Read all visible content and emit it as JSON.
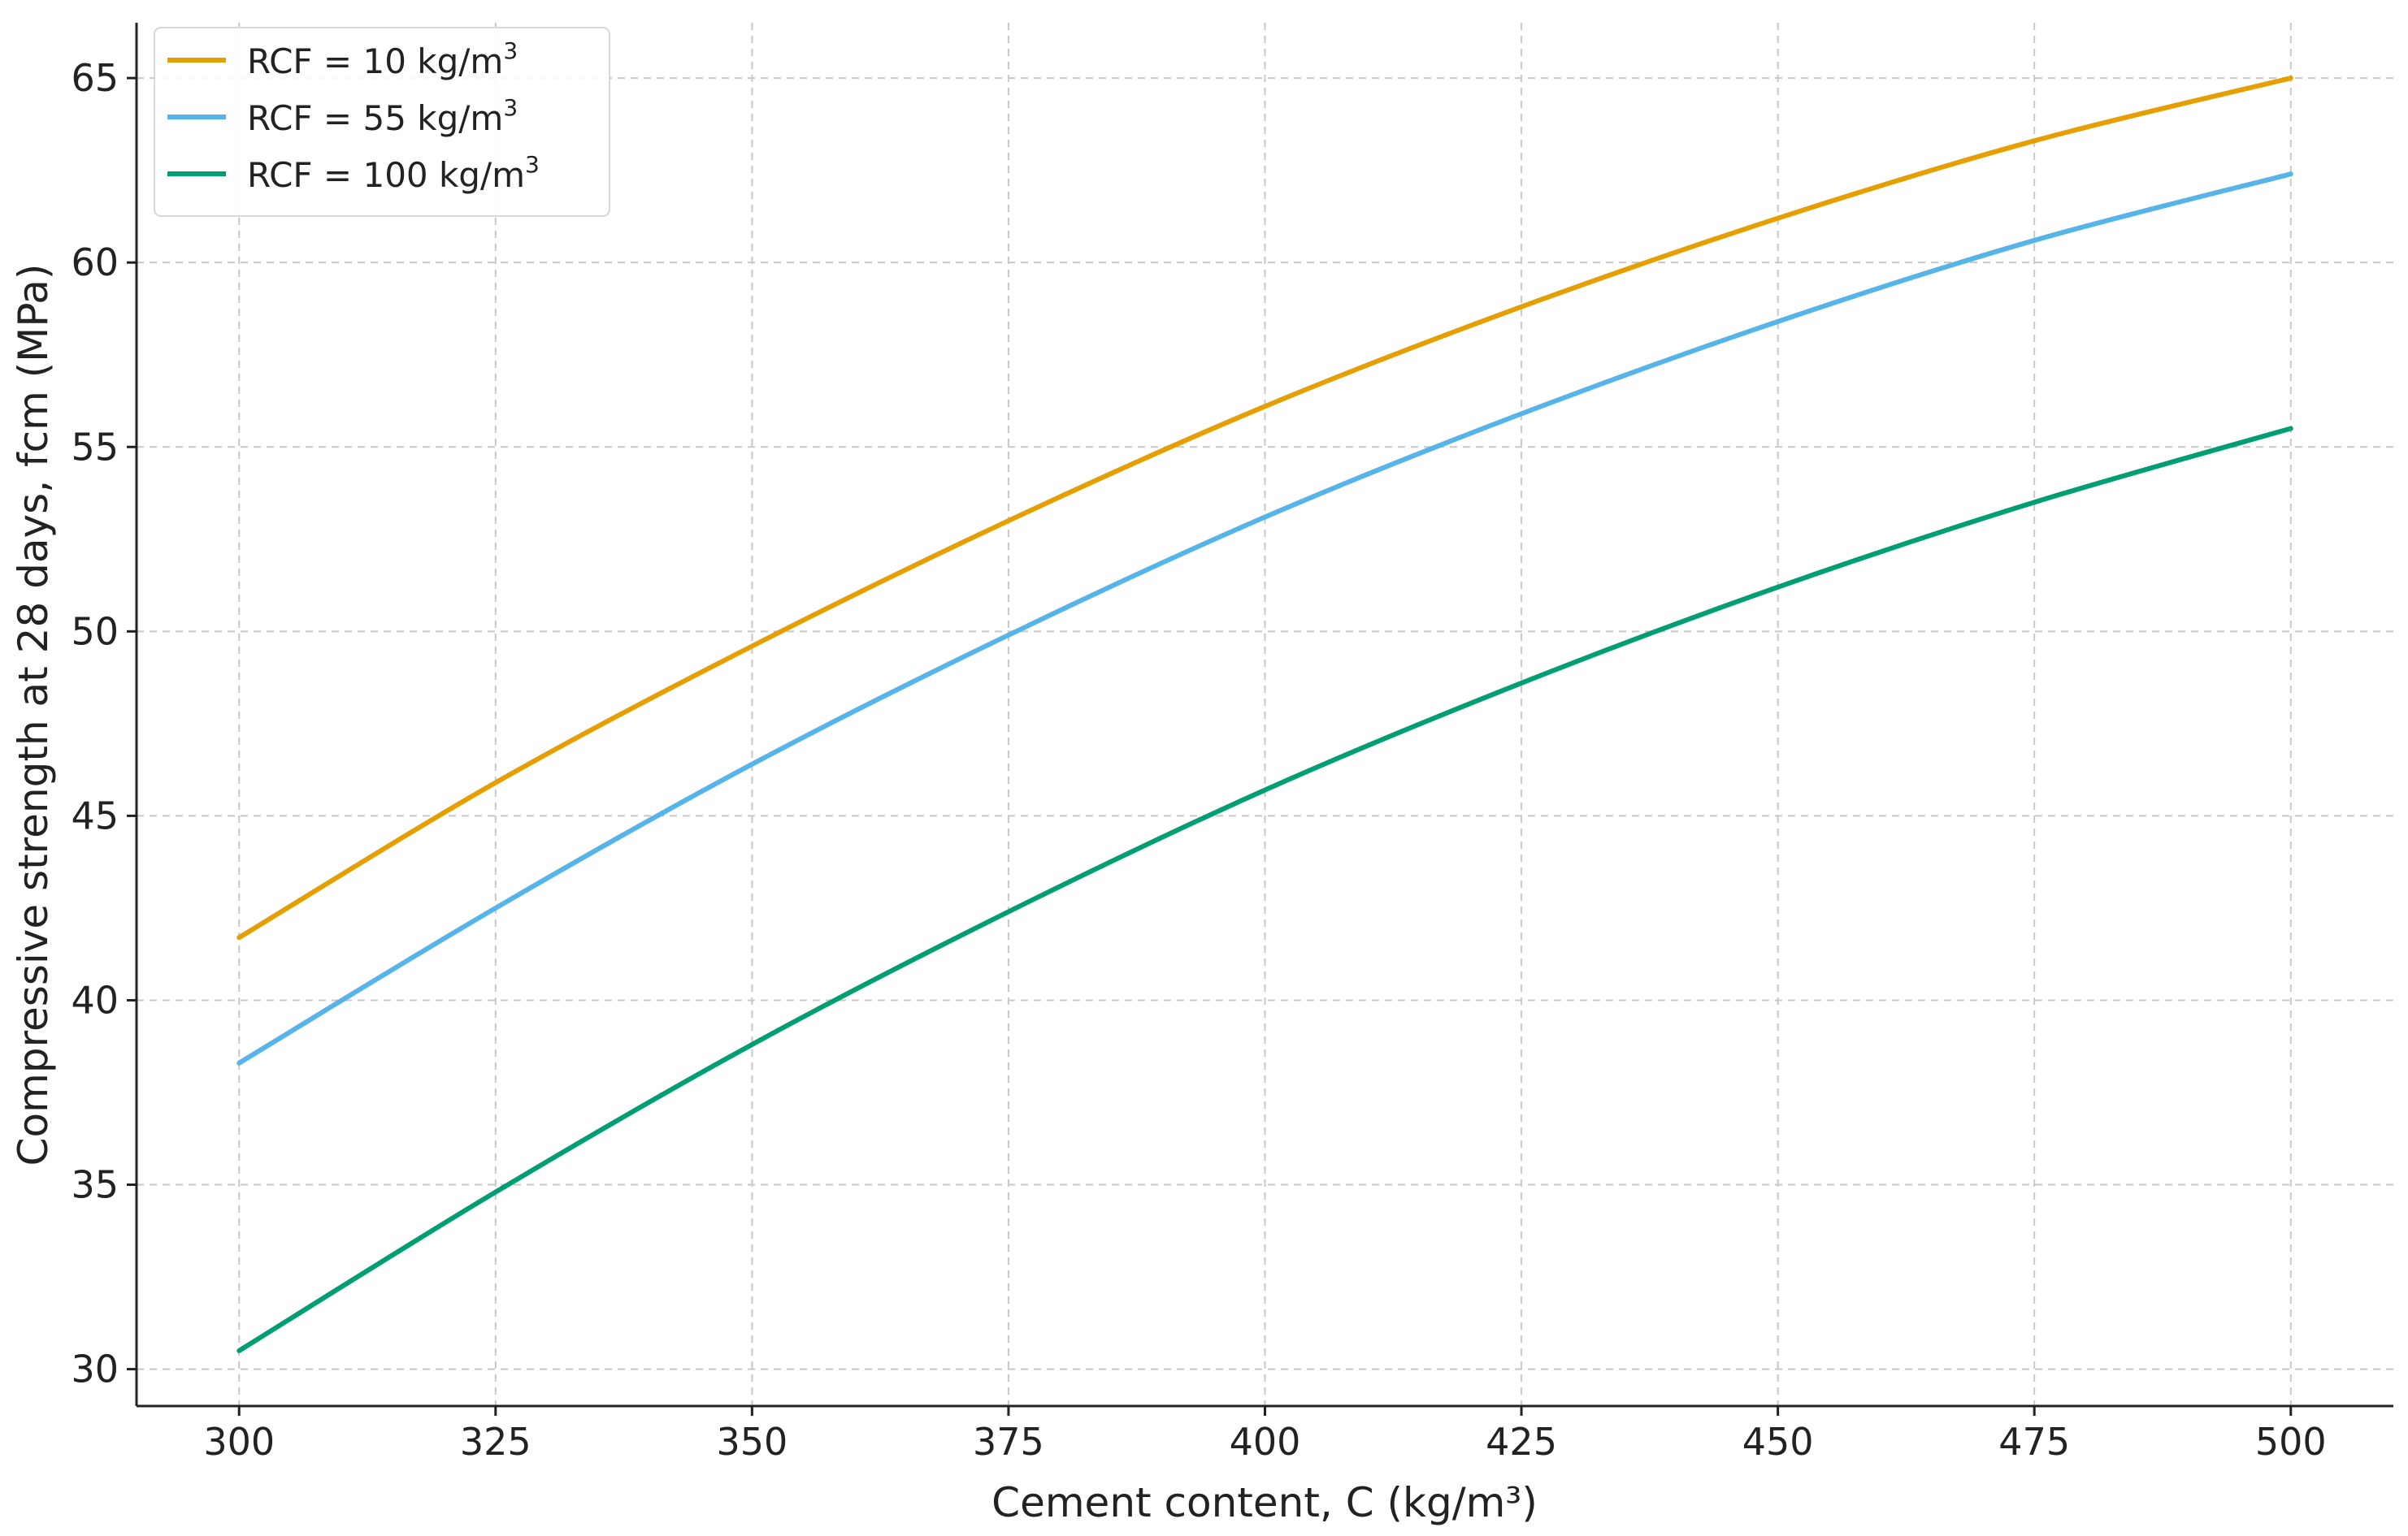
{
  "chart_data": {
    "type": "line",
    "title": "",
    "xlabel": "Cement content, C (kg/m³)",
    "ylabel": "Compressive strength at 28 days, fcm (MPa)",
    "xlim": [
      290,
      510
    ],
    "ylim": [
      29.0,
      66.5
    ],
    "xticks": [
      300,
      325,
      350,
      375,
      400,
      425,
      450,
      475,
      500
    ],
    "yticks": [
      30,
      35,
      40,
      45,
      50,
      55,
      60,
      65
    ],
    "grid": true,
    "legend_position": "top-left",
    "x": [
      300,
      325,
      350,
      375,
      400,
      425,
      450,
      475,
      500
    ],
    "series": [
      {
        "name_prefix": "RCF = 10 kg/m",
        "name_sup": "3",
        "color": "#E69F00",
        "values": [
          41.7,
          45.9,
          49.6,
          53.0,
          56.1,
          58.8,
          61.2,
          63.3,
          65.0
        ]
      },
      {
        "name_prefix": "RCF = 55 kg/m",
        "name_sup": "3",
        "color": "#56B4E9",
        "values": [
          38.3,
          42.5,
          46.4,
          49.9,
          53.1,
          55.9,
          58.4,
          60.6,
          62.4
        ]
      },
      {
        "name_prefix": "RCF = 100 kg/m",
        "name_sup": "3",
        "color": "#009E73",
        "values": [
          30.5,
          34.8,
          38.8,
          42.4,
          45.7,
          48.6,
          51.2,
          53.5,
          55.5
        ]
      }
    ]
  }
}
